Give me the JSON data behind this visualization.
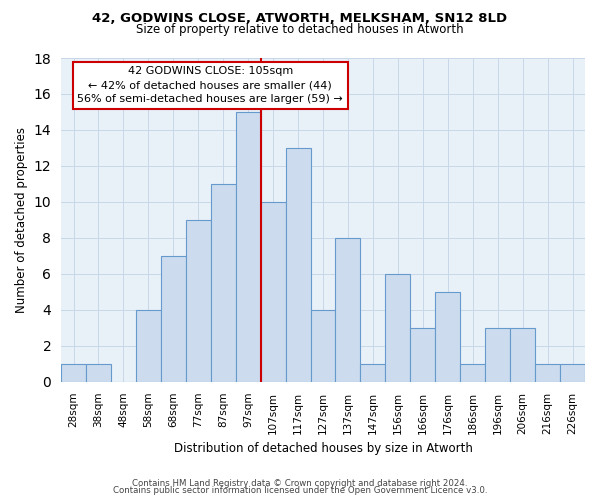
{
  "title": "42, GODWINS CLOSE, ATWORTH, MELKSHAM, SN12 8LD",
  "subtitle": "Size of property relative to detached houses in Atworth",
  "xlabel": "Distribution of detached houses by size in Atworth",
  "ylabel": "Number of detached properties",
  "bar_labels": [
    "28sqm",
    "38sqm",
    "48sqm",
    "58sqm",
    "68sqm",
    "77sqm",
    "87sqm",
    "97sqm",
    "107sqm",
    "117sqm",
    "127sqm",
    "137sqm",
    "147sqm",
    "156sqm",
    "166sqm",
    "176sqm",
    "186sqm",
    "196sqm",
    "206sqm",
    "216sqm",
    "226sqm"
  ],
  "bar_values": [
    1,
    1,
    0,
    4,
    7,
    9,
    11,
    15,
    10,
    13,
    4,
    8,
    1,
    6,
    3,
    5,
    1,
    3,
    3,
    1,
    1
  ],
  "bar_color": "#ccdcee",
  "bar_edge_color": "#6699cc",
  "marker_line_color": "#cc0000",
  "annotation_title": "42 GODWINS CLOSE: 105sqm",
  "annotation_line1": "← 42% of detached houses are smaller (44)",
  "annotation_line2": "56% of semi-detached houses are larger (59) →",
  "annotation_box_facecolor": "#ffffff",
  "annotation_box_edgecolor": "#cc0000",
  "ylim": [
    0,
    18
  ],
  "yticks": [
    0,
    2,
    4,
    6,
    8,
    10,
    12,
    14,
    16,
    18
  ],
  "footer1": "Contains HM Land Registry data © Crown copyright and database right 2024.",
  "footer2": "Contains public sector information licensed under the Open Government Licence v3.0.",
  "bg_color": "#ffffff",
  "plot_bg_color": "#e8f0f8",
  "grid_color": "#c8d8e8"
}
